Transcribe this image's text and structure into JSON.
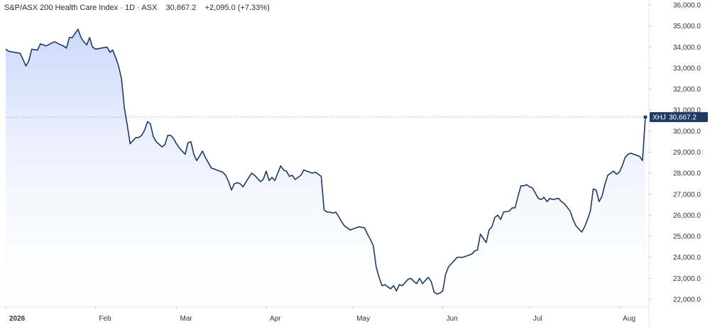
{
  "header": {
    "title": "S&P/ASX 200 Health Care Index",
    "interval": "1D",
    "exchange": "ASX",
    "last": "30,667.2",
    "change": "+2,095.0 (+7.33%)"
  },
  "price_tag": {
    "symbol": "XHJ",
    "value": "30,667.2"
  },
  "colors": {
    "line": "#1f3a63",
    "area_top": "#c9d6fb",
    "area_bottom": "#ffffff",
    "tag_bg": "#1f3a63",
    "grid": "#e6e6e6",
    "dotted": "#9aa0a6"
  },
  "chart_data": {
    "type": "area",
    "title": "S&P/ASX 200 Health Care Index · 1D · ASX",
    "xlabel": "",
    "ylabel": "",
    "ylim": [
      21650,
      36000
    ],
    "y_ticks": [
      22000,
      23000,
      24000,
      25000,
      26000,
      27000,
      28000,
      29000,
      30000,
      31000,
      32000,
      33000,
      34000,
      35000,
      36000
    ],
    "y_tick_labels": [
      "22,000.0",
      "23,000.0",
      "24,000.0",
      "25,000.0",
      "26,000.0",
      "27,000.0",
      "28,000.0",
      "29,000.0",
      "30,000.0",
      "31,000.0",
      "32,000.0",
      "33,000.0",
      "34,000.0",
      "35,000.0",
      "36,000.0"
    ],
    "x_ticks": [
      {
        "label": "2026",
        "date": "2026-01-01",
        "bold": true
      },
      {
        "label": "Feb",
        "date": "2026-02-01",
        "bold": false
      },
      {
        "label": "Mar",
        "date": "2026-03-01",
        "bold": false
      },
      {
        "label": "Apr",
        "date": "2026-04-01",
        "bold": false
      },
      {
        "label": "May",
        "date": "2026-05-01",
        "bold": false
      },
      {
        "label": "Jun",
        "date": "2026-06-01",
        "bold": false
      },
      {
        "label": "Jul",
        "date": "2026-07-01",
        "bold": false
      },
      {
        "label": "Aug",
        "date": "2026-08-01",
        "bold": false
      }
    ],
    "grid": false,
    "legend": "none",
    "last_value": 30667.2,
    "series": [
      {
        "name": "XHJ",
        "points": [
          [
            "2026-01-01",
            33900
          ],
          [
            "2026-01-02",
            33800
          ],
          [
            "2026-01-04",
            33750
          ],
          [
            "2026-01-06",
            33700
          ],
          [
            "2026-01-07",
            33400
          ],
          [
            "2026-01-08",
            33100
          ],
          [
            "2026-01-09",
            33350
          ],
          [
            "2026-01-10",
            33900
          ],
          [
            "2026-01-12",
            33850
          ],
          [
            "2026-01-13",
            34150
          ],
          [
            "2026-01-14",
            34100
          ],
          [
            "2026-01-15",
            34050
          ],
          [
            "2026-01-17",
            34200
          ],
          [
            "2026-01-18",
            34250
          ],
          [
            "2026-01-20",
            34100
          ],
          [
            "2026-01-21",
            34050
          ],
          [
            "2026-01-22",
            33950
          ],
          [
            "2026-01-23",
            34450
          ],
          [
            "2026-01-24",
            34450
          ],
          [
            "2026-01-26",
            34850
          ],
          [
            "2026-01-27",
            34450
          ],
          [
            "2026-01-28",
            34250
          ],
          [
            "2026-01-29",
            34100
          ],
          [
            "2026-01-30",
            34450
          ],
          [
            "2026-01-31",
            34000
          ],
          [
            "2026-02-01",
            33900
          ],
          [
            "2026-02-03",
            33950
          ],
          [
            "2026-02-05",
            34000
          ],
          [
            "2026-02-06",
            33750
          ],
          [
            "2026-02-07",
            33850
          ],
          [
            "2026-02-08",
            33500
          ],
          [
            "2026-02-09",
            33100
          ],
          [
            "2026-02-10",
            32500
          ],
          [
            "2026-02-11",
            31100
          ],
          [
            "2026-02-12",
            30300
          ],
          [
            "2026-02-13",
            29400
          ],
          [
            "2026-02-15",
            29700
          ],
          [
            "2026-02-16",
            29700
          ],
          [
            "2026-02-17",
            29800
          ],
          [
            "2026-02-18",
            30050
          ],
          [
            "2026-02-19",
            30450
          ],
          [
            "2026-02-20",
            30350
          ],
          [
            "2026-02-21",
            29750
          ],
          [
            "2026-02-22",
            29500
          ],
          [
            "2026-02-24",
            29250
          ],
          [
            "2026-02-25",
            29350
          ],
          [
            "2026-02-26",
            29800
          ],
          [
            "2026-02-27",
            29800
          ],
          [
            "2026-02-28",
            29650
          ],
          [
            "2026-03-01",
            29400
          ],
          [
            "2026-03-02",
            29200
          ],
          [
            "2026-03-04",
            28900
          ],
          [
            "2026-03-05",
            29450
          ],
          [
            "2026-03-06",
            29500
          ],
          [
            "2026-03-07",
            28900
          ],
          [
            "2026-03-08",
            28600
          ],
          [
            "2026-03-10",
            29050
          ],
          [
            "2026-03-11",
            28750
          ],
          [
            "2026-03-12",
            28500
          ],
          [
            "2026-03-13",
            28250
          ],
          [
            "2026-03-14",
            28200
          ],
          [
            "2026-03-16",
            28100
          ],
          [
            "2026-03-17",
            28050
          ],
          [
            "2026-03-18",
            27900
          ],
          [
            "2026-03-19",
            27600
          ],
          [
            "2026-03-20",
            27200
          ],
          [
            "2026-03-21",
            27500
          ],
          [
            "2026-03-22",
            27550
          ],
          [
            "2026-03-23",
            27500
          ],
          [
            "2026-03-24",
            27350
          ],
          [
            "2026-03-26",
            27800
          ],
          [
            "2026-03-27",
            28000
          ],
          [
            "2026-03-28",
            27900
          ],
          [
            "2026-03-30",
            27600
          ],
          [
            "2026-03-31",
            27700
          ],
          [
            "2026-04-01",
            28100
          ],
          [
            "2026-04-02",
            27650
          ],
          [
            "2026-04-03",
            27800
          ],
          [
            "2026-04-04",
            27650
          ],
          [
            "2026-04-06",
            28350
          ],
          [
            "2026-04-07",
            28150
          ],
          [
            "2026-04-08",
            28100
          ],
          [
            "2026-04-09",
            27850
          ],
          [
            "2026-04-10",
            27900
          ],
          [
            "2026-04-11",
            27700
          ],
          [
            "2026-04-13",
            27900
          ],
          [
            "2026-04-14",
            28150
          ],
          [
            "2026-04-16",
            28050
          ],
          [
            "2026-04-17",
            28000
          ],
          [
            "2026-04-18",
            28050
          ],
          [
            "2026-04-19",
            27950
          ],
          [
            "2026-04-20",
            27850
          ],
          [
            "2026-04-21",
            26250
          ],
          [
            "2026-04-22",
            26150
          ],
          [
            "2026-04-23",
            26150
          ],
          [
            "2026-04-24",
            26100
          ],
          [
            "2026-04-25",
            26150
          ],
          [
            "2026-04-26",
            25950
          ],
          [
            "2026-04-27",
            25700
          ],
          [
            "2026-04-28",
            25500
          ],
          [
            "2026-04-29",
            25400
          ],
          [
            "2026-04-30",
            25300
          ],
          [
            "2026-05-01",
            25350
          ],
          [
            "2026-05-03",
            25450
          ],
          [
            "2026-05-05",
            25400
          ],
          [
            "2026-05-06",
            25100
          ],
          [
            "2026-05-07",
            24850
          ],
          [
            "2026-05-08",
            24550
          ],
          [
            "2026-05-09",
            23550
          ],
          [
            "2026-05-10",
            23050
          ],
          [
            "2026-05-11",
            22650
          ],
          [
            "2026-05-12",
            22700
          ],
          [
            "2026-05-14",
            22500
          ],
          [
            "2026-05-15",
            22650
          ],
          [
            "2026-05-16",
            22400
          ],
          [
            "2026-05-17",
            22700
          ],
          [
            "2026-05-18",
            22650
          ],
          [
            "2026-05-20",
            22950
          ],
          [
            "2026-05-21",
            23000
          ],
          [
            "2026-05-22",
            22850
          ],
          [
            "2026-05-23",
            22750
          ],
          [
            "2026-05-24",
            23000
          ],
          [
            "2026-05-25",
            22750
          ],
          [
            "2026-05-27",
            23050
          ],
          [
            "2026-05-28",
            22850
          ],
          [
            "2026-05-29",
            22350
          ],
          [
            "2026-05-30",
            22250
          ],
          [
            "2026-05-31",
            22300
          ],
          [
            "2026-06-01",
            22400
          ],
          [
            "2026-06-02",
            23200
          ],
          [
            "2026-06-03",
            23550
          ],
          [
            "2026-06-04",
            23700
          ],
          [
            "2026-06-05",
            23850
          ],
          [
            "2026-06-06",
            24000
          ],
          [
            "2026-06-08",
            24000
          ],
          [
            "2026-06-09",
            24050
          ],
          [
            "2026-06-11",
            24150
          ],
          [
            "2026-06-12",
            24300
          ],
          [
            "2026-06-13",
            24350
          ],
          [
            "2026-06-14",
            25100
          ],
          [
            "2026-06-15",
            24900
          ],
          [
            "2026-06-16",
            24700
          ],
          [
            "2026-06-17",
            25300
          ],
          [
            "2026-06-18",
            25450
          ],
          [
            "2026-06-19",
            25900
          ],
          [
            "2026-06-20",
            26000
          ],
          [
            "2026-06-21",
            25800
          ],
          [
            "2026-06-22",
            26150
          ],
          [
            "2026-06-24",
            26200
          ],
          [
            "2026-06-25",
            26350
          ],
          [
            "2026-06-26",
            26350
          ],
          [
            "2026-06-27",
            26900
          ],
          [
            "2026-06-28",
            27400
          ],
          [
            "2026-06-29",
            27400
          ],
          [
            "2026-06-30",
            27450
          ],
          [
            "2026-07-01",
            27350
          ],
          [
            "2026-07-02",
            27300
          ],
          [
            "2026-07-04",
            26800
          ],
          [
            "2026-07-05",
            26750
          ],
          [
            "2026-07-06",
            26850
          ],
          [
            "2026-07-07",
            26650
          ],
          [
            "2026-07-08",
            26800
          ],
          [
            "2026-07-09",
            26750
          ],
          [
            "2026-07-11",
            26800
          ],
          [
            "2026-07-12",
            26650
          ],
          [
            "2026-07-13",
            26550
          ],
          [
            "2026-07-15",
            26200
          ],
          [
            "2026-07-16",
            25800
          ],
          [
            "2026-07-17",
            25500
          ],
          [
            "2026-07-18",
            25350
          ],
          [
            "2026-07-19",
            25200
          ],
          [
            "2026-07-20",
            25450
          ],
          [
            "2026-07-21",
            25800
          ],
          [
            "2026-07-22",
            26200
          ],
          [
            "2026-07-23",
            27250
          ],
          [
            "2026-07-24",
            27200
          ],
          [
            "2026-07-25",
            26650
          ],
          [
            "2026-07-26",
            26900
          ],
          [
            "2026-07-27",
            27450
          ],
          [
            "2026-07-28",
            27900
          ],
          [
            "2026-07-30",
            28100
          ],
          [
            "2026-07-31",
            27950
          ],
          [
            "2026-08-01",
            28050
          ],
          [
            "2026-08-02",
            28350
          ],
          [
            "2026-08-03",
            28750
          ],
          [
            "2026-08-04",
            28900
          ],
          [
            "2026-08-05",
            28950
          ],
          [
            "2026-08-06",
            28900
          ],
          [
            "2026-08-08",
            28800
          ],
          [
            "2026-08-09",
            28600
          ],
          [
            "2026-08-10",
            30667.2
          ]
        ]
      }
    ]
  }
}
